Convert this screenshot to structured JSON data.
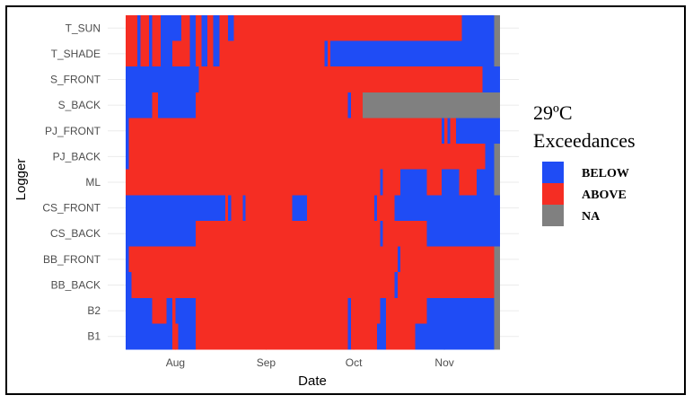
{
  "chart_data": {
    "type": "heatmap",
    "title": "",
    "xlabel": "Date",
    "ylabel": "Logger",
    "x_range": [
      "2019-07-15",
      "2019-11-30"
    ],
    "x_ticks": [
      {
        "date": "2019-08-01",
        "label": "Aug"
      },
      {
        "date": "2019-09-01",
        "label": "Sep"
      },
      {
        "date": "2019-10-01",
        "label": "Oct"
      },
      {
        "date": "2019-11-01",
        "label": "Nov"
      }
    ],
    "grid": true,
    "legend": {
      "title_line1": "29ºC",
      "title_line2": "Exceedances",
      "placement": "right",
      "items": [
        {
          "key": "BELOW",
          "label": "BELOW",
          "color": "#1f4cf5"
        },
        {
          "key": "ABOVE",
          "label": "ABOVE",
          "color": "#f52d23"
        },
        {
          "key": "NA",
          "label": "NA",
          "color": "#808080"
        }
      ]
    },
    "loggers": [
      {
        "name": "T_SUN",
        "segments": [
          [
            "2019-07-15",
            "2019-07-19",
            "ABOVE"
          ],
          [
            "2019-07-19",
            "2019-07-20",
            "BELOW"
          ],
          [
            "2019-07-20",
            "2019-07-23",
            "ABOVE"
          ],
          [
            "2019-07-23",
            "2019-07-24",
            "BELOW"
          ],
          [
            "2019-07-24",
            "2019-07-27",
            "ABOVE"
          ],
          [
            "2019-07-27",
            "2019-08-03",
            "BELOW"
          ],
          [
            "2019-08-03",
            "2019-08-06",
            "ABOVE"
          ],
          [
            "2019-08-06",
            "2019-08-08",
            "BELOW"
          ],
          [
            "2019-08-08",
            "2019-08-10",
            "ABOVE"
          ],
          [
            "2019-08-10",
            "2019-08-12",
            "BELOW"
          ],
          [
            "2019-08-12",
            "2019-08-14",
            "ABOVE"
          ],
          [
            "2019-08-14",
            "2019-08-16",
            "BELOW"
          ],
          [
            "2019-08-16",
            "2019-08-19",
            "ABOVE"
          ],
          [
            "2019-08-19",
            "2019-08-21",
            "BELOW"
          ],
          [
            "2019-08-21",
            "2019-11-07",
            "ABOVE"
          ],
          [
            "2019-11-07",
            "2019-11-18",
            "BELOW"
          ],
          [
            "2019-11-18",
            "2019-11-20",
            "NA"
          ]
        ]
      },
      {
        "name": "T_SHADE",
        "segments": [
          [
            "2019-07-15",
            "2019-07-19",
            "ABOVE"
          ],
          [
            "2019-07-19",
            "2019-07-20",
            "BELOW"
          ],
          [
            "2019-07-20",
            "2019-07-23",
            "ABOVE"
          ],
          [
            "2019-07-23",
            "2019-07-24",
            "BELOW"
          ],
          [
            "2019-07-24",
            "2019-07-27",
            "ABOVE"
          ],
          [
            "2019-07-27",
            "2019-07-31",
            "BELOW"
          ],
          [
            "2019-07-31",
            "2019-08-06",
            "ABOVE"
          ],
          [
            "2019-08-06",
            "2019-08-08",
            "BELOW"
          ],
          [
            "2019-08-08",
            "2019-08-10",
            "ABOVE"
          ],
          [
            "2019-08-10",
            "2019-08-12",
            "BELOW"
          ],
          [
            "2019-08-12",
            "2019-08-14",
            "ABOVE"
          ],
          [
            "2019-08-14",
            "2019-08-16",
            "BELOW"
          ],
          [
            "2019-08-16",
            "2019-09-21",
            "ABOVE"
          ],
          [
            "2019-09-21",
            "2019-09-22",
            "BELOW"
          ],
          [
            "2019-09-22",
            "2019-09-23",
            "ABOVE"
          ],
          [
            "2019-09-23",
            "2019-11-18",
            "BELOW"
          ],
          [
            "2019-11-18",
            "2019-11-20",
            "NA"
          ]
        ]
      },
      {
        "name": "S_FRONT",
        "segments": [
          [
            "2019-07-15",
            "2019-08-09",
            "BELOW"
          ],
          [
            "2019-08-09",
            "2019-11-14",
            "ABOVE"
          ],
          [
            "2019-11-14",
            "2019-11-20",
            "BELOW"
          ]
        ]
      },
      {
        "name": "S_BACK",
        "segments": [
          [
            "2019-07-15",
            "2019-07-24",
            "BELOW"
          ],
          [
            "2019-07-24",
            "2019-07-26",
            "ABOVE"
          ],
          [
            "2019-07-26",
            "2019-08-08",
            "BELOW"
          ],
          [
            "2019-08-08",
            "2019-09-29",
            "ABOVE"
          ],
          [
            "2019-09-29",
            "2019-09-30",
            "BELOW"
          ],
          [
            "2019-09-30",
            "2019-10-04",
            "ABOVE"
          ],
          [
            "2019-10-04",
            "2019-11-20",
            "NA"
          ]
        ]
      },
      {
        "name": "PJ_FRONT",
        "segments": [
          [
            "2019-07-15",
            "2019-07-16",
            "BELOW"
          ],
          [
            "2019-07-16",
            "2019-10-31",
            "ABOVE"
          ],
          [
            "2019-10-31",
            "2019-11-01",
            "BELOW"
          ],
          [
            "2019-11-01",
            "2019-11-02",
            "ABOVE"
          ],
          [
            "2019-11-02",
            "2019-11-03",
            "BELOW"
          ],
          [
            "2019-11-03",
            "2019-11-05",
            "ABOVE"
          ],
          [
            "2019-11-05",
            "2019-11-20",
            "BELOW"
          ]
        ]
      },
      {
        "name": "PJ_BACK",
        "segments": [
          [
            "2019-07-15",
            "2019-07-16",
            "BELOW"
          ],
          [
            "2019-07-16",
            "2019-11-15",
            "ABOVE"
          ],
          [
            "2019-11-15",
            "2019-11-18",
            "BELOW"
          ],
          [
            "2019-11-18",
            "2019-11-20",
            "NA"
          ]
        ]
      },
      {
        "name": "ML",
        "segments": [
          [
            "2019-07-15",
            "2019-10-10",
            "ABOVE"
          ],
          [
            "2019-10-10",
            "2019-10-11",
            "BELOW"
          ],
          [
            "2019-10-11",
            "2019-10-17",
            "ABOVE"
          ],
          [
            "2019-10-17",
            "2019-10-26",
            "BELOW"
          ],
          [
            "2019-10-26",
            "2019-10-31",
            "ABOVE"
          ],
          [
            "2019-10-31",
            "2019-11-06",
            "BELOW"
          ],
          [
            "2019-11-06",
            "2019-11-12",
            "ABOVE"
          ],
          [
            "2019-11-12",
            "2019-11-18",
            "BELOW"
          ],
          [
            "2019-11-18",
            "2019-11-20",
            "NA"
          ]
        ]
      },
      {
        "name": "CS_FRONT",
        "segments": [
          [
            "2019-07-15",
            "2019-08-18",
            "BELOW"
          ],
          [
            "2019-08-18",
            "2019-08-19",
            "ABOVE"
          ],
          [
            "2019-08-19",
            "2019-08-20",
            "BELOW"
          ],
          [
            "2019-08-20",
            "2019-08-24",
            "ABOVE"
          ],
          [
            "2019-08-24",
            "2019-08-25",
            "BELOW"
          ],
          [
            "2019-08-25",
            "2019-09-10",
            "ABOVE"
          ],
          [
            "2019-09-10",
            "2019-09-15",
            "BELOW"
          ],
          [
            "2019-09-15",
            "2019-10-08",
            "ABOVE"
          ],
          [
            "2019-10-08",
            "2019-10-09",
            "BELOW"
          ],
          [
            "2019-10-09",
            "2019-10-15",
            "ABOVE"
          ],
          [
            "2019-10-15",
            "2019-11-20",
            "BELOW"
          ]
        ]
      },
      {
        "name": "CS_BACK",
        "segments": [
          [
            "2019-07-15",
            "2019-08-08",
            "BELOW"
          ],
          [
            "2019-08-08",
            "2019-10-10",
            "ABOVE"
          ],
          [
            "2019-10-10",
            "2019-10-11",
            "BELOW"
          ],
          [
            "2019-10-11",
            "2019-10-26",
            "ABOVE"
          ],
          [
            "2019-10-26",
            "2019-11-20",
            "BELOW"
          ]
        ]
      },
      {
        "name": "BB_FRONT",
        "segments": [
          [
            "2019-07-15",
            "2019-07-16",
            "BELOW"
          ],
          [
            "2019-07-16",
            "2019-10-16",
            "ABOVE"
          ],
          [
            "2019-10-16",
            "2019-10-17",
            "BELOW"
          ],
          [
            "2019-10-17",
            "2019-11-18",
            "ABOVE"
          ],
          [
            "2019-11-18",
            "2019-11-20",
            "NA"
          ]
        ]
      },
      {
        "name": "BB_BACK",
        "segments": [
          [
            "2019-07-15",
            "2019-07-17",
            "BELOW"
          ],
          [
            "2019-07-17",
            "2019-10-15",
            "ABOVE"
          ],
          [
            "2019-10-15",
            "2019-10-16",
            "BELOW"
          ],
          [
            "2019-10-16",
            "2019-11-18",
            "ABOVE"
          ],
          [
            "2019-11-18",
            "2019-11-20",
            "NA"
          ]
        ]
      },
      {
        "name": "B2",
        "segments": [
          [
            "2019-07-15",
            "2019-07-24",
            "BELOW"
          ],
          [
            "2019-07-24",
            "2019-07-29",
            "ABOVE"
          ],
          [
            "2019-07-29",
            "2019-07-31",
            "BELOW"
          ],
          [
            "2019-07-31",
            "2019-08-01",
            "ABOVE"
          ],
          [
            "2019-08-01",
            "2019-08-08",
            "BELOW"
          ],
          [
            "2019-08-08",
            "2019-09-29",
            "ABOVE"
          ],
          [
            "2019-09-29",
            "2019-09-30",
            "BELOW"
          ],
          [
            "2019-09-30",
            "2019-10-10",
            "ABOVE"
          ],
          [
            "2019-10-10",
            "2019-10-12",
            "BELOW"
          ],
          [
            "2019-10-12",
            "2019-10-26",
            "ABOVE"
          ],
          [
            "2019-10-26",
            "2019-11-18",
            "BELOW"
          ],
          [
            "2019-11-18",
            "2019-11-20",
            "NA"
          ]
        ]
      },
      {
        "name": "B1",
        "segments": [
          [
            "2019-07-15",
            "2019-07-31",
            "BELOW"
          ],
          [
            "2019-07-31",
            "2019-08-02",
            "ABOVE"
          ],
          [
            "2019-08-02",
            "2019-08-08",
            "BELOW"
          ],
          [
            "2019-08-08",
            "2019-09-29",
            "ABOVE"
          ],
          [
            "2019-09-29",
            "2019-09-30",
            "BELOW"
          ],
          [
            "2019-09-30",
            "2019-10-09",
            "ABOVE"
          ],
          [
            "2019-10-09",
            "2019-10-12",
            "BELOW"
          ],
          [
            "2019-10-12",
            "2019-10-22",
            "ABOVE"
          ],
          [
            "2019-10-22",
            "2019-11-18",
            "BELOW"
          ],
          [
            "2019-11-18",
            "2019-11-20",
            "NA"
          ]
        ]
      }
    ]
  }
}
